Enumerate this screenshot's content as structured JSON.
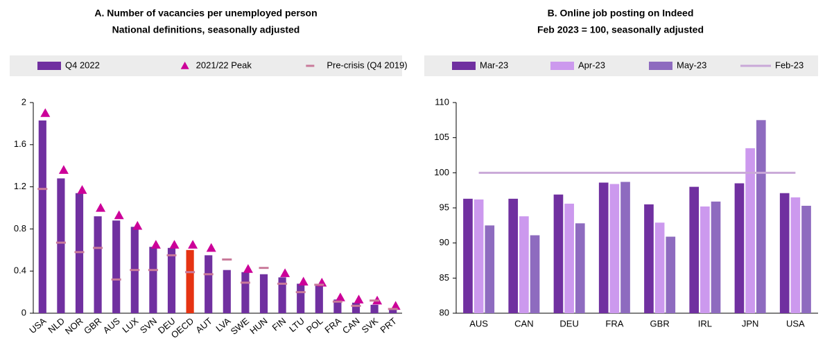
{
  "chart_data": [
    {
      "type": "bar",
      "title": "A. Number of vacancies per unemployed person",
      "subtitle": "National definitions, seasonally adjusted",
      "categories": [
        "USA",
        "NLD",
        "NOR",
        "GBR",
        "AUS",
        "LUX",
        "SVN",
        "DEU",
        "OECD",
        "AUT",
        "LVA",
        "SWE",
        "HUN",
        "FIN",
        "LTU",
        "POL",
        "FRA",
        "CAN",
        "SVK",
        "PRT"
      ],
      "series": [
        {
          "name": "Q4 2022",
          "type": "bar",
          "color": "#7030a0",
          "colors": [
            "#7030a0",
            "#7030a0",
            "#7030a0",
            "#7030a0",
            "#7030a0",
            "#7030a0",
            "#7030a0",
            "#7030a0",
            "#e63312",
            "#7030a0",
            "#7030a0",
            "#7030a0",
            "#7030a0",
            "#7030a0",
            "#7030a0",
            "#7030a0",
            "#7030a0",
            "#7030a0",
            "#7030a0",
            "#7030a0"
          ],
          "values": [
            1.83,
            1.28,
            1.14,
            0.92,
            0.88,
            0.82,
            0.63,
            0.62,
            0.6,
            0.55,
            0.41,
            0.39,
            0.37,
            0.34,
            0.28,
            0.26,
            0.13,
            0.1,
            0.08,
            0.04
          ]
        },
        {
          "name": "2021/22 Peak",
          "type": "scatter",
          "marker": "triangle",
          "color": "#cc0099",
          "values": [
            1.9,
            1.36,
            1.17,
            1.0,
            0.93,
            0.83,
            0.65,
            0.65,
            0.65,
            0.62,
            null,
            0.42,
            null,
            0.38,
            0.3,
            0.29,
            0.15,
            0.13,
            0.12,
            0.07
          ]
        },
        {
          "name": "Pre-crisis (Q4 2019)",
          "type": "scatter",
          "marker": "dash",
          "color": "#c97a9a",
          "values": [
            1.18,
            0.67,
            0.58,
            0.62,
            0.32,
            0.41,
            0.41,
            0.55,
            0.39,
            0.37,
            0.51,
            0.29,
            0.43,
            0.28,
            0.2,
            0.27,
            0.11,
            0.07,
            0.12,
            0.04
          ]
        }
      ],
      "ylim": [
        0,
        2
      ],
      "yticks": [
        0,
        0.4,
        0.8,
        1.2,
        1.6,
        2
      ],
      "grid": false
    },
    {
      "type": "bar",
      "title": "B. Online job posting on Indeed",
      "subtitle": "Feb 2023 = 100, seasonally adjusted",
      "categories": [
        "AUS",
        "CAN",
        "DEU",
        "FRA",
        "GBR",
        "IRL",
        "JPN",
        "USA"
      ],
      "series": [
        {
          "name": "Mar-23",
          "type": "bar",
          "color": "#7030a0",
          "values": [
            96.3,
            96.3,
            96.9,
            98.6,
            95.5,
            98.0,
            98.5,
            97.1
          ]
        },
        {
          "name": "Apr-23",
          "type": "bar",
          "color": "#cc99ee",
          "values": [
            96.2,
            93.8,
            95.6,
            98.4,
            92.9,
            95.2,
            103.5,
            96.5
          ]
        },
        {
          "name": "May-23",
          "type": "bar",
          "color": "#8e6bbf",
          "values": [
            92.5,
            91.1,
            92.8,
            98.7,
            90.9,
            95.9,
            107.5,
            95.3
          ]
        },
        {
          "name": "Feb-23",
          "type": "line",
          "color": "#c9a8d8",
          "values": [
            100,
            100,
            100,
            100,
            100,
            100,
            100,
            100
          ]
        }
      ],
      "ylim": [
        80,
        110
      ],
      "yticks": [
        80,
        85,
        90,
        95,
        100,
        105,
        110
      ],
      "grid": false
    }
  ]
}
